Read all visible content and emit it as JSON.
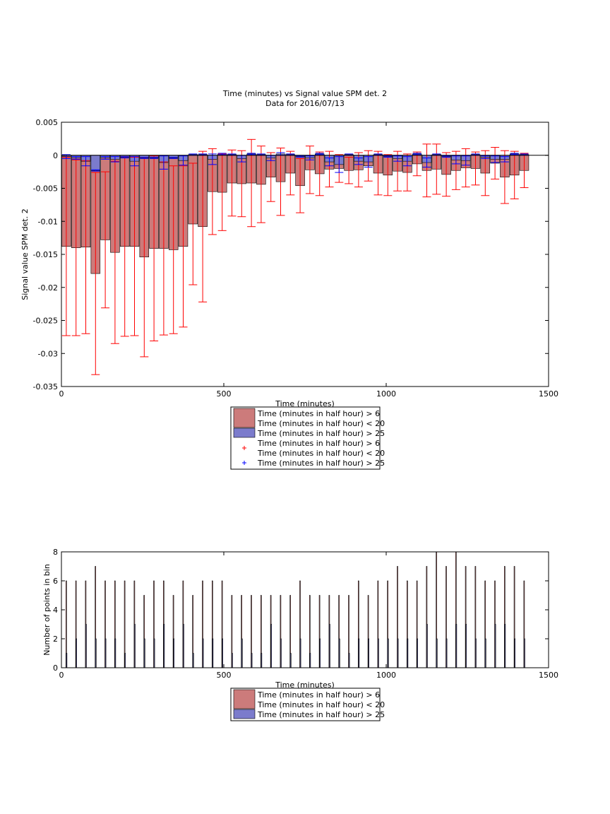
{
  "chart_data": [
    {
      "type": "bar",
      "title": "Time (minutes) vs Signal value SPM det. 2",
      "subtitle": "Data for 2016/07/13",
      "xlabel": "Time (minutes)",
      "ylabel": "Signal value SPM det. 2",
      "xlim": [
        0,
        1500
      ],
      "ylim": [
        -0.035,
        0.005
      ],
      "xticks": [
        "0",
        "500",
        "1000",
        "1500"
      ],
      "yticks": [
        "0.005",
        "0",
        "-0.005",
        "-0.01",
        "-0.015",
        "-0.02",
        "-0.025",
        "-0.03",
        "-0.035"
      ],
      "grid": false,
      "legend_position": "below plot",
      "legend": [
        {
          "lines": [
            "Time (minutes in half hour) > 6",
            "Time (minutes in half hour) < 20"
          ],
          "kind": "bar",
          "color": "#CC7B7B"
        },
        {
          "lines": [
            "Time (minutes in half hour) > 25"
          ],
          "kind": "bar",
          "color": "#7B7BCC"
        },
        {
          "lines": [
            "Time (minutes in half hour) > 6",
            "Time (minutes in half hour) < 20"
          ],
          "kind": "marker",
          "color": "#FF0000"
        },
        {
          "lines": [
            "Time (minutes in half hour) > 25"
          ],
          "kind": "marker",
          "color": "#0000FF"
        }
      ],
      "x": [
        15,
        45,
        75,
        105,
        135,
        165,
        195,
        225,
        255,
        285,
        315,
        345,
        375,
        405,
        435,
        465,
        495,
        525,
        555,
        585,
        615,
        645,
        675,
        705,
        735,
        765,
        795,
        825,
        855,
        885,
        915,
        945,
        975,
        1005,
        1035,
        1065,
        1095,
        1125,
        1155,
        1185,
        1215,
        1245,
        1275,
        1305,
        1335,
        1365,
        1395,
        1425
      ],
      "series": [
        {
          "values": [
            -0.0138,
            -0.014,
            -0.0139,
            -0.0179,
            -0.0128,
            -0.0147,
            -0.0138,
            -0.0138,
            -0.0154,
            -0.0141,
            -0.0141,
            -0.0143,
            -0.0138,
            -0.0104,
            -0.0108,
            -0.0055,
            -0.0056,
            -0.0042,
            -0.0043,
            -0.0042,
            -0.0044,
            -0.0033,
            -0.004,
            -0.0027,
            -0.0046,
            -0.0022,
            -0.0028,
            -0.0021,
            -0.002,
            -0.0023,
            -0.0022,
            -0.0016,
            -0.0027,
            -0.003,
            -0.0024,
            -0.0026,
            -0.0013,
            -0.0023,
            -0.0021,
            -0.0029,
            -0.0023,
            -0.0019,
            -0.002,
            -0.0027,
            -0.0012,
            -0.0033,
            -0.003,
            -0.0023
          ],
          "err": [
            0.0135,
            0.0133,
            0.0131,
            0.0153,
            0.0103,
            0.0138,
            0.0136,
            0.0135,
            0.0151,
            0.014,
            0.0131,
            0.0127,
            0.0122,
            0.0092,
            0.0114,
            0.0065,
            0.0058,
            0.005,
            0.005,
            0.0066,
            0.0058,
            0.0037,
            0.0051,
            0.0033,
            0.0041,
            0.0036,
            0.0033,
            0.0027,
            0.0021,
            0.002,
            0.0026,
            0.0023,
            0.0033,
            0.0031,
            0.003,
            0.0028,
            0.0018,
            0.004,
            0.0038,
            0.0033,
            0.0029,
            0.0029,
            0.0025,
            0.0034,
            0.0024,
            0.004,
            0.0036,
            0.0026
          ]
        },
        {
          "values": [
            -0.0002,
            -0.0004,
            -0.0009,
            -0.0023,
            -0.0004,
            -0.0006,
            -0.0003,
            -0.0009,
            -0.0004,
            -0.0004,
            -0.0011,
            -0.0004,
            -0.0008,
            0.0001,
            0.0001,
            -0.0006,
            0.0002,
            0.0001,
            -0.0005,
            0.0002,
            0.0001,
            -0.0004,
            0.0002,
            0.0001,
            -0.0002,
            -0.0004,
            0.0002,
            -0.001,
            -0.0014,
            0.0001,
            -0.0009,
            -0.001,
            0.0001,
            -0.0002,
            -0.0005,
            -0.0009,
            0.0002,
            -0.0011,
            0.0001,
            -0.0002,
            -0.0007,
            -0.0008,
            0.0001,
            -0.0003,
            -0.0006,
            -0.0006,
            0.0002,
            0.0001
          ],
          "err": [
            0.0003,
            0.0002,
            0.0007,
            0.0001,
            0.0002,
            0.0004,
            0.0001,
            0.0007,
            0.0001,
            0.0001,
            0.001,
            0.0001,
            0.0007,
            0.0001,
            0.0001,
            0.0008,
            0.0001,
            0.0001,
            0.0005,
            0.0001,
            0.0001,
            0.0004,
            0.0002,
            0.0001,
            0.0001,
            0.0003,
            0.0001,
            0.0006,
            0.0012,
            0.0001,
            0.0005,
            0.0008,
            0.0001,
            0.0001,
            0.0004,
            0.0007,
            0.0001,
            0.0007,
            0.0001,
            0.0001,
            0.0006,
            0.0007,
            0.0001,
            0.0002,
            0.0005,
            0.0004,
            0.0001,
            0.0001
          ]
        }
      ]
    },
    {
      "type": "bar",
      "xlabel": "Time (minutes)",
      "ylabel": "Number of points in bin",
      "xlim": [
        0,
        1500
      ],
      "ylim": [
        0,
        8
      ],
      "xticks": [
        "0",
        "500",
        "1000",
        "1500"
      ],
      "yticks": [
        "8",
        "6",
        "4",
        "2",
        "0"
      ],
      "grid": false,
      "legend_position": "below plot",
      "legend": [
        {
          "lines": [
            "Time (minutes in half hour) > 6",
            "Time (minutes in half hour) < 20"
          ],
          "kind": "bar",
          "color": "#CC7B7B"
        },
        {
          "lines": [
            "Time (minutes in half hour) > 25"
          ],
          "kind": "bar",
          "color": "#7B7BCC"
        }
      ],
      "x": [
        15,
        45,
        75,
        105,
        135,
        165,
        195,
        225,
        255,
        285,
        315,
        345,
        375,
        405,
        435,
        465,
        495,
        525,
        555,
        585,
        615,
        645,
        675,
        705,
        735,
        765,
        795,
        825,
        855,
        885,
        915,
        945,
        975,
        1005,
        1035,
        1065,
        1095,
        1125,
        1155,
        1185,
        1215,
        1245,
        1275,
        1305,
        1335,
        1365,
        1395,
        1425
      ],
      "series": [
        {
          "values": [
            6,
            6,
            6,
            7,
            6,
            6,
            6,
            6,
            5,
            6,
            6,
            5,
            6,
            5,
            6,
            6,
            6,
            5,
            5,
            5,
            5,
            5,
            5,
            5,
            6,
            5,
            5,
            5,
            5,
            5,
            6,
            5,
            6,
            6,
            7,
            6,
            6,
            7,
            8,
            7,
            8,
            7,
            7,
            6,
            6,
            7,
            7,
            6
          ]
        },
        {
          "values": [
            1,
            2,
            3,
            2,
            2,
            2,
            1,
            3,
            2,
            2,
            3,
            2,
            3,
            1,
            2,
            2,
            2,
            1,
            2,
            1,
            1,
            3,
            2,
            1,
            2,
            1,
            2,
            3,
            2,
            1,
            2,
            2,
            2,
            2,
            2,
            2,
            2,
            3,
            2,
            2,
            3,
            3,
            2,
            2,
            3,
            3,
            2,
            2
          ]
        }
      ]
    }
  ]
}
